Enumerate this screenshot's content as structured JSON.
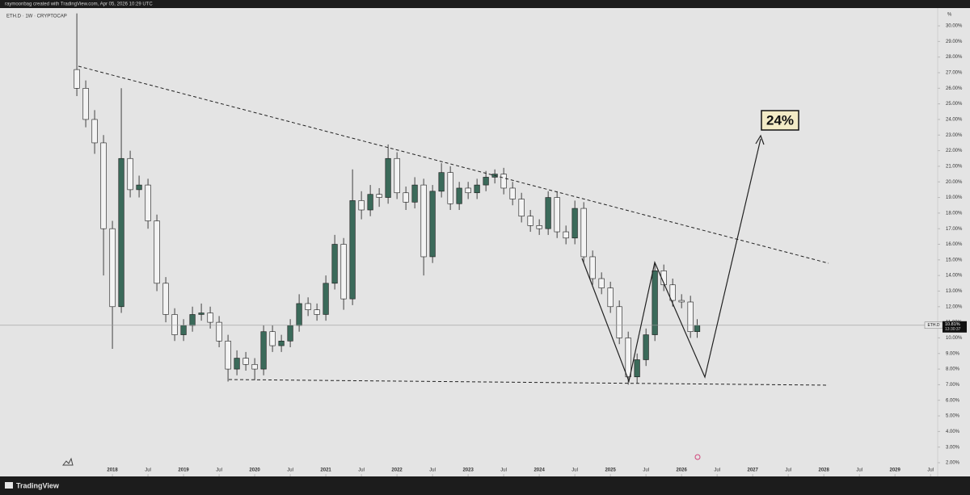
{
  "header": {
    "credit": "raymoonbag created with TradingView.com, Apr 05, 2026 10:29 UTC",
    "footer": "TradingView"
  },
  "chart_data": {
    "type": "candlestick",
    "title": "ETH.D · 1W · CRYPTOCAP",
    "y_unit": "%",
    "annotation": "24%",
    "symbol": "ETH.D",
    "last_label": "10.81%",
    "countdown": "13:30:37",
    "up_color": "#3b6a5a",
    "down_color": "#f4f4f4",
    "grid": false,
    "xlim": [
      2016.42,
      2029.6
    ],
    "ylim": [
      1.12,
      31.14
    ],
    "xticks": [
      2018,
      {
        "value": 2018.5,
        "label": "Jul"
      },
      2019,
      {
        "value": 2019.5,
        "label": "Jul"
      },
      2020,
      {
        "value": 2020.5,
        "label": "Jul"
      },
      2021,
      {
        "value": 2021.5,
        "label": "Jul"
      },
      2022,
      {
        "value": 2022.5,
        "label": "Jul"
      },
      2023,
      {
        "value": 2023.5,
        "label": "Jul"
      },
      2024,
      {
        "value": 2024.5,
        "label": "Jul"
      },
      2025,
      {
        "value": 2025.5,
        "label": "Jul"
      },
      2026,
      {
        "value": 2026.5,
        "label": "Jul"
      },
      2027,
      {
        "value": 2027.5,
        "label": "Jul"
      },
      2028,
      {
        "value": 2028.5,
        "label": "Jul"
      },
      2029,
      {
        "value": 2029.5,
        "label": "Jul"
      }
    ],
    "yticks": [
      {
        "value": 30,
        "label": "30.00%"
      },
      {
        "value": 29,
        "label": "29.00%"
      },
      {
        "value": 28,
        "label": "28.00%"
      },
      {
        "value": 27,
        "label": "27.00%"
      },
      {
        "value": 26,
        "label": "26.00%"
      },
      {
        "value": 25,
        "label": "25.00%"
      },
      {
        "value": 24,
        "label": "24.00%"
      },
      {
        "value": 23,
        "label": "23.00%"
      },
      {
        "value": 22,
        "label": "22.00%"
      },
      {
        "value": 21,
        "label": "21.00%"
      },
      {
        "value": 20,
        "label": "20.00%"
      },
      {
        "value": 19,
        "label": "19.00%"
      },
      {
        "value": 18,
        "label": "18.00%"
      },
      {
        "value": 17,
        "label": "17.00%"
      },
      {
        "value": 16,
        "label": "16.00%"
      },
      {
        "value": 15,
        "label": "15.00%"
      },
      {
        "value": 14,
        "label": "14.00%"
      },
      {
        "value": 13,
        "label": "13.00%"
      },
      {
        "value": 12,
        "label": "12.00%"
      },
      {
        "value": 11,
        "label": "11.00%"
      },
      {
        "value": 10,
        "label": "10.00%"
      },
      {
        "value": 9,
        "label": "9.00%"
      },
      {
        "value": 8,
        "label": "8.00%"
      },
      {
        "value": 7,
        "label": "7.00%"
      },
      {
        "value": 6,
        "label": "6.00%"
      },
      {
        "value": 5,
        "label": "5.00%"
      },
      {
        "value": 4,
        "label": "4.00%"
      },
      {
        "value": 3,
        "label": "3.00%"
      },
      {
        "value": 2,
        "label": "2.00%"
      }
    ],
    "x": [
      2017.5,
      2017.625,
      2017.75,
      2017.875,
      2018.0,
      2018.125,
      2018.25,
      2018.375,
      2018.5,
      2018.625,
      2018.75,
      2018.875,
      2019.0,
      2019.125,
      2019.25,
      2019.375,
      2019.5,
      2019.625,
      2019.75,
      2019.875,
      2020.0,
      2020.125,
      2020.25,
      2020.375,
      2020.5,
      2020.625,
      2020.75,
      2020.875,
      2021.0,
      2021.125,
      2021.25,
      2021.375,
      2021.5,
      2021.625,
      2021.75,
      2021.875,
      2022.0,
      2022.125,
      2022.25,
      2022.375,
      2022.5,
      2022.625,
      2022.75,
      2022.875,
      2023.0,
      2023.125,
      2023.25,
      2023.375,
      2023.5,
      2023.625,
      2023.75,
      2023.875,
      2024.0,
      2024.125,
      2024.25,
      2024.375,
      2024.5,
      2024.625,
      2024.75,
      2024.875,
      2025.0,
      2025.125,
      2025.25,
      2025.375,
      2025.5,
      2025.625,
      2025.75,
      2025.875,
      2026.0,
      2026.125,
      2026.22
    ],
    "open": [
      27.2,
      26,
      24,
      22.5,
      17,
      12,
      21.5,
      19.5,
      19.8,
      17.5,
      13.5,
      11.5,
      10.2,
      10.8,
      11.5,
      11.6,
      11,
      9.8,
      8,
      8.7,
      8.3,
      8,
      10.4,
      9.5,
      9.8,
      10.8,
      12.2,
      11.8,
      11.5,
      13.5,
      16,
      12.5,
      18.8,
      18.2,
      19.2,
      19,
      21.5,
      19.3,
      18.7,
      19.8,
      15.2,
      19.4,
      20.6,
      18.6,
      19.6,
      19.3,
      19.8,
      20.3,
      20.5,
      19.6,
      18.9,
      17.8,
      17.2,
      17,
      19,
      16.8,
      16.4,
      18.3,
      15.2,
      13.8,
      13.2,
      12,
      10,
      7.5,
      8.6,
      10.2,
      14.3,
      13.4,
      12.4,
      12.3,
      10.4
    ],
    "high": [
      30.8,
      26.5,
      24.6,
      23,
      17.5,
      26,
      22,
      20.4,
      20.2,
      17.9,
      13.9,
      11.9,
      11.2,
      12,
      12.2,
      12,
      11.4,
      10.2,
      9.2,
      9.1,
      8.7,
      10.8,
      10.8,
      10.2,
      11.2,
      12.8,
      12.6,
      12.2,
      14,
      16.6,
      16.4,
      20.8,
      19.4,
      19.8,
      19.6,
      22.4,
      21.9,
      19.7,
      20.3,
      20.2,
      19.8,
      21.2,
      21,
      20,
      20,
      20.2,
      20.7,
      20.8,
      20.9,
      20,
      19.3,
      18.2,
      17.6,
      19.4,
      19.4,
      17.2,
      18.8,
      18.7,
      15.6,
      14.2,
      13.6,
      12.4,
      10.4,
      9,
      10.6,
      14.8,
      14.7,
      13.8,
      12.8,
      12.7,
      11.2
    ],
    "low": [
      25.5,
      23.5,
      21.8,
      14,
      9.3,
      11.6,
      19,
      19,
      17,
      13,
      11,
      9.8,
      9.8,
      10.4,
      11.1,
      10.6,
      9.4,
      7.2,
      7.6,
      7.9,
      7.3,
      7.6,
      9.1,
      9.1,
      9.4,
      10.4,
      11.4,
      11.1,
      11.1,
      13.1,
      11.8,
      12.1,
      17.6,
      17.8,
      18.4,
      18.6,
      18.9,
      18.2,
      18.3,
      14,
      14.8,
      19,
      18.2,
      18.2,
      18.9,
      18.9,
      19.4,
      19.9,
      19.2,
      18.5,
      17.4,
      16.8,
      16.6,
      16.6,
      16.4,
      16,
      16,
      14.8,
      13.4,
      12.8,
      11.6,
      9.6,
      7,
      7.1,
      8.2,
      9.8,
      13,
      12,
      11.9,
      10,
      10
    ],
    "close": [
      26,
      24,
      22.5,
      17,
      12,
      21.5,
      19.5,
      19.8,
      17.5,
      13.5,
      11.5,
      10.2,
      10.8,
      11.5,
      11.6,
      11,
      9.8,
      8,
      8.7,
      8.3,
      8,
      10.4,
      9.5,
      9.8,
      10.8,
      12.2,
      11.8,
      11.5,
      13.5,
      16,
      12.5,
      18.8,
      18.2,
      19.2,
      19,
      21.5,
      19.3,
      18.7,
      19.8,
      15.2,
      19.4,
      20.6,
      18.6,
      19.6,
      19.3,
      19.8,
      20.3,
      20.5,
      19.6,
      18.9,
      17.8,
      17.2,
      17,
      19,
      16.8,
      16.4,
      18.3,
      15.2,
      13.8,
      13.2,
      12,
      10,
      7.5,
      8.6,
      10.2,
      14.3,
      13.4,
      12.4,
      12.3,
      10.4,
      10.81
    ]
  }
}
